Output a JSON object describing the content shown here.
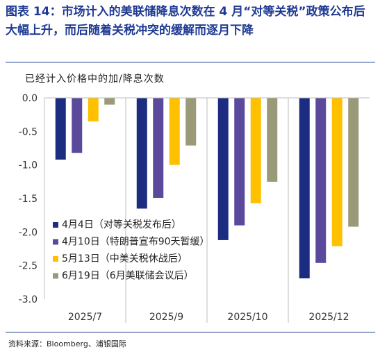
{
  "title": {
    "prefix": "图表 14：",
    "text": "市场计入的美联储降息次数在 4 月“对等关税”政策公布后大幅上升，而后随着关税冲突的缓解而逐月下降"
  },
  "source": "资料来源：Bloomberg、浦银国际",
  "chart_data": {
    "type": "bar",
    "ylabel": "已经计入价格中的加/降息次数",
    "ylim": [
      -3.0,
      0.0
    ],
    "yticks": [
      "0.0",
      "-0.5",
      "-1.0",
      "-1.5",
      "-2.0",
      "-2.5",
      "-3.0"
    ],
    "categories": [
      "2025/7",
      "2025/9",
      "2025/10",
      "2025/12"
    ],
    "grid": false,
    "legend_position": "bottom-left",
    "series": [
      {
        "name": "4月4日（对等关税发布后）",
        "color": "#1c2c80",
        "values": [
          -0.92,
          -1.65,
          -2.12,
          -2.69
        ]
      },
      {
        "name": "4月10日（特朗普宣布90天暂缓）",
        "color": "#5b4a9c",
        "values": [
          -0.82,
          -1.49,
          -1.9,
          -2.46
        ]
      },
      {
        "name": "5月13日（中美关税休战后）",
        "color": "#ffc000",
        "values": [
          -0.35,
          -1.0,
          -1.57,
          -2.21
        ]
      },
      {
        "name": "6月19日（6月美联储会议后）",
        "color": "#9a9a78",
        "values": [
          -0.1,
          -0.71,
          -1.25,
          -1.92
        ]
      }
    ]
  }
}
